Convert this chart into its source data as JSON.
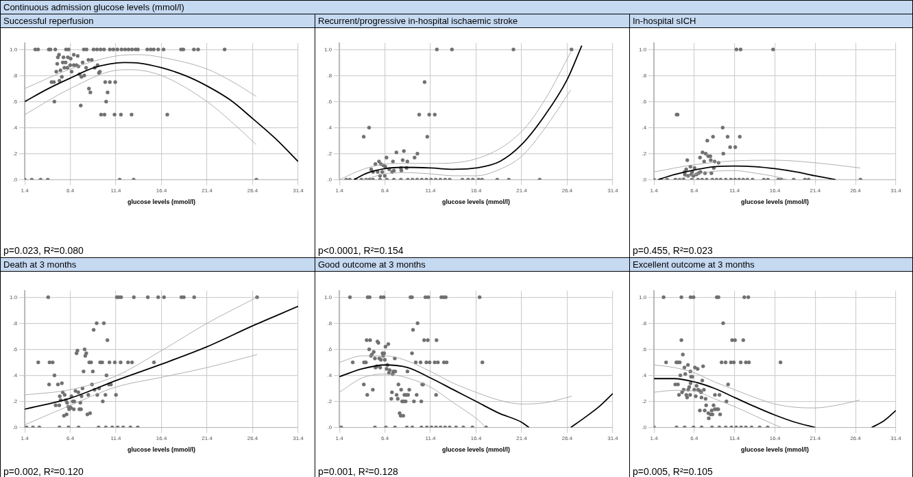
{
  "chart_data": [
    {
      "type": "other",
      "title": "Continuous admission glucose levels (mmol/l)"
    },
    {
      "type": "scatter",
      "title": "Successful reperfusion",
      "xlabel": "glucose levels (mmol/l)",
      "annotations": [
        "p=0.023, R²=0.080"
      ],
      "xlim": [
        1.4,
        31.4
      ],
      "ylim": [
        0,
        1.05
      ],
      "xticks": [
        1.4,
        6.4,
        11.4,
        16.4,
        21.4,
        26.4,
        31.4
      ],
      "yticks": [
        {
          "value": 0,
          "label": ".0"
        },
        {
          "value": 0.2,
          "label": ".2"
        },
        {
          "value": 0.4,
          "label": ".4"
        },
        {
          "value": 0.6,
          "label": ".6"
        },
        {
          "value": 0.8,
          "label": ".8"
        },
        {
          "value": 1,
          "label": "1.0"
        }
      ],
      "grid": true,
      "series": [
        {
          "type": "scatter",
          "marker": "circle",
          "color": "#707070",
          "x": [
            2.55,
            2.86,
            4.04,
            4.22,
            4.75,
            5.93,
            6.21,
            7.88,
            8.18,
            8.95,
            9.33,
            9.72,
            10.1,
            10.74,
            11.13,
            11.56,
            12.02,
            12.41,
            12.79,
            13.17,
            13.56,
            13.81,
            14.84,
            15.22,
            15.55,
            16.04,
            16.63,
            18.55,
            18.8,
            19.96,
            20.42,
            23.33,
            5.16,
            5.03,
            5.65,
            6.13,
            6.78,
            7.21,
            6.44,
            4.96,
            5.57,
            5.88,
            5.75,
            6.08,
            6.39,
            6.78,
            7.06,
            7.29,
            7.75,
            8.39,
            8.75,
            8.13,
            9.08,
            9.39,
            4.86,
            5.32,
            6.54,
            5.47,
            4.34,
            4.6,
            5.21,
            7.41,
            7.62,
            7.93,
            9.54,
            9.64,
            10.23,
            10.74,
            11.33,
            8.44,
            8.6,
            10.49,
            4.65,
            10.33,
            7.54,
            9.77,
            10.15,
            11.25,
            11.95,
            13.12,
            17.04,
            1.4,
            2.17,
            3.14,
            3.93,
            11.82,
            13.35,
            26.82
          ],
          "values": [
            1,
            1,
            1,
            1,
            1,
            1,
            1,
            1,
            1,
            1,
            1,
            1,
            1,
            1,
            1,
            1,
            1,
            1,
            1,
            1,
            1,
            1,
            1,
            1,
            1,
            1,
            1,
            1,
            1,
            1,
            1,
            1,
            0.96,
            0.94,
            0.94,
            0.94,
            0.96,
            0.95,
            0.93,
            0.89,
            0.9,
            0.9,
            0.86,
            0.86,
            0.88,
            0.88,
            0.88,
            0.87,
            0.9,
            0.92,
            0.92,
            0.86,
            0.86,
            0.88,
            0.83,
            0.84,
            0.83,
            0.79,
            0.75,
            0.75,
            0.76,
            0.81,
            0.79,
            0.8,
            0.82,
            0.83,
            0.75,
            0.75,
            0.75,
            0.7,
            0.67,
            0.67,
            0.6,
            0.6,
            0.57,
            0.5,
            0.5,
            0.5,
            0.5,
            0.5,
            0.5,
            0,
            0,
            0,
            0,
            0,
            0,
            0
          ]
        },
        {
          "type": "line",
          "marker": "none",
          "color": "#000000",
          "x": [
            1.4,
            4,
            6.4,
            9,
            12.3,
            14,
            16.4,
            19,
            21.4,
            24,
            26.4,
            29,
            31.4
          ],
          "values": [
            0.6,
            0.7,
            0.78,
            0.86,
            0.9,
            0.895,
            0.86,
            0.8,
            0.72,
            0.61,
            0.47,
            0.31,
            0.14
          ]
        },
        {
          "type": "line",
          "marker": "none",
          "color": "#a6a6a6",
          "x": [
            1.4,
            6.4,
            11.4,
            14,
            16.4,
            21.4,
            24,
            26.8
          ],
          "values": [
            0.7,
            0.85,
            0.95,
            0.96,
            0.94,
            0.85,
            0.76,
            0.64
          ]
        },
        {
          "type": "line",
          "marker": "none",
          "color": "#a6a6a6",
          "x": [
            1.4,
            6.4,
            11.4,
            13,
            16.4,
            21.4,
            24,
            26.8
          ],
          "values": [
            0.5,
            0.7,
            0.84,
            0.845,
            0.8,
            0.6,
            0.45,
            0.27
          ]
        }
      ]
    },
    {
      "type": "scatter",
      "title": "Recurrent/progressive in-hospital ischaemic stroke",
      "xlabel": "glucose levels (mmol/l)",
      "annotations": [
        "p<0.0001, R²=0.154"
      ],
      "xlim": [
        1.4,
        31.4
      ],
      "ylim": [
        0,
        1.05
      ],
      "xticks": [
        1.4,
        6.4,
        11.4,
        16.4,
        21.4,
        26.4,
        31.4
      ],
      "yticks": [
        {
          "value": 0,
          "label": ".0"
        },
        {
          "value": 0.2,
          "label": ".2"
        },
        {
          "value": 0.4,
          "label": ".4"
        },
        {
          "value": 0.6,
          "label": ".6"
        },
        {
          "value": 0.8,
          "label": ".8"
        },
        {
          "value": 1,
          "label": "1.0"
        }
      ],
      "grid": true,
      "series": [
        {
          "type": "scatter",
          "marker": "circle",
          "color": "#707070",
          "x": [
            12.1,
            13.75,
            20.5,
            26.87,
            10.75,
            10.16,
            11.26,
            11.87,
            11.05,
            4.07,
            4.66,
            7.66,
            8.48,
            9.96,
            9.65,
            6.57,
            8.35,
            8.86,
            7.28,
            5.75,
            5.35,
            5.96,
            6.24,
            6.44,
            4.89,
            6.87,
            8.15,
            8.78,
            5.09,
            5.6,
            6.11,
            7.2,
            7.38,
            8.2,
            5.86,
            6.39,
            2.16,
            2.55,
            3.18,
            3.82,
            4.33,
            4.71,
            5.09,
            5.86,
            6.62,
            7.38,
            8.15,
            8.91,
            9.42,
            9.93,
            10.44,
            10.95,
            11.46,
            11.97,
            12.48,
            13,
            13.5,
            14.9,
            15.53,
            16.04,
            16.68,
            17.06,
            18.72,
            19.99,
            23.38
          ],
          "values": [
            1,
            1,
            1,
            1,
            0.75,
            0.5,
            0.5,
            0.5,
            0.33,
            0.33,
            0.4,
            0.21,
            0.22,
            0.2,
            0.17,
            0.17,
            0.15,
            0.14,
            0.14,
            0.14,
            0.12,
            0.12,
            0.11,
            0.1,
            0.08,
            0.08,
            0.09,
            0.09,
            0.06,
            0.06,
            0.06,
            0.06,
            0.07,
            0.07,
            0.03,
            0.03,
            0,
            0,
            0,
            0,
            0,
            0,
            0,
            0,
            0,
            0,
            0,
            0,
            0,
            0,
            0,
            0,
            0,
            0,
            0,
            0,
            0,
            0,
            0,
            0,
            0,
            0,
            0,
            0,
            0
          ]
        },
        {
          "type": "line",
          "marker": "none",
          "color": "#000000",
          "x": [
            3,
            4.4,
            6.4,
            8.4,
            11.4,
            13.9,
            16.4,
            19,
            21.4,
            24,
            26.4,
            28
          ],
          "values": [
            0,
            0.05,
            0.085,
            0.095,
            0.09,
            0.08,
            0.09,
            0.14,
            0.27,
            0.5,
            0.77,
            1.03
          ]
        },
        {
          "type": "line",
          "marker": "none",
          "color": "#a6a6a6",
          "x": [
            1.4,
            4,
            6.4,
            8.4,
            11.4,
            16.4,
            21.4,
            24,
            26.8
          ],
          "values": [
            0,
            0.08,
            0.12,
            0.125,
            0.125,
            0.16,
            0.37,
            0.62,
            0.98
          ]
        },
        {
          "type": "line",
          "marker": "none",
          "color": "#a6a6a6",
          "x": [
            4.07,
            6.4,
            8.4,
            11.4,
            14,
            16.4,
            19,
            21.4,
            24,
            26.8
          ],
          "values": [
            0,
            0.045,
            0.055,
            0.045,
            0.03,
            0.03,
            0.08,
            0.18,
            0.4,
            0.69
          ]
        }
      ]
    },
    {
      "type": "scatter",
      "title": "In-hospital sICH",
      "xlabel": "glucose levels (mmol/l)",
      "annotations": [
        "p=0.455, R²=0.023"
      ],
      "xlim": [
        1.4,
        31.4
      ],
      "ylim": [
        0,
        1.05
      ],
      "xticks": [
        1.4,
        6.4,
        11.4,
        16.4,
        21.4,
        26.4,
        31.4
      ],
      "yticks": [
        {
          "value": 0,
          "label": ".0"
        },
        {
          "value": 0.2,
          "label": ".2"
        },
        {
          "value": 0.4,
          "label": ".4"
        },
        {
          "value": 0.6,
          "label": ".6"
        },
        {
          "value": 0.8,
          "label": ".8"
        },
        {
          "value": 1,
          "label": "1.0"
        }
      ],
      "grid": true,
      "series": [
        {
          "type": "scatter",
          "marker": "circle",
          "color": "#707070",
          "x": [
            11.63,
            12.14,
            16.17,
            4.21,
            4.33,
            9.92,
            8.72,
            10.53,
            12.04,
            8.01,
            10.84,
            11.48,
            10,
            7.42,
            7.82,
            8.13,
            8.39,
            8.44,
            7.62,
            8.92,
            9.41,
            5.53,
            5.92,
            7.11,
            8.82,
            8.52,
            7.73,
            6.43,
            5.4,
            6.12,
            5.2,
            7.17,
            6.94,
            6.66,
            6.02,
            5.63,
            6.3,
            5.23,
            1.4,
            2.27,
            3.03,
            4.05,
            4.56,
            5.07,
            6.09,
            6.86,
            7.37,
            7.93,
            8.64,
            9.16,
            9.67,
            10.3,
            10.94,
            11.45,
            11.96,
            12.47,
            12.98,
            13.62,
            15.02,
            15.53,
            16.81,
            17.19,
            18.72,
            20.12,
            20.58,
            27.01
          ],
          "values": [
            1,
            1,
            1,
            0.5,
            0.5,
            0.4,
            0.33,
            0.33,
            0.33,
            0.3,
            0.25,
            0.25,
            0.2,
            0.21,
            0.2,
            0.18,
            0.18,
            0.15,
            0.14,
            0.14,
            0.13,
            0.15,
            0.1,
            0.17,
            0.09,
            0.05,
            0.05,
            0.09,
            0.08,
            0.06,
            0.06,
            0.06,
            0.05,
            0.04,
            0.04,
            0.03,
            0.03,
            0.04,
            0,
            0,
            0,
            0,
            0,
            0,
            0,
            0,
            0,
            0,
            0,
            0,
            0,
            0,
            0,
            0,
            0,
            0,
            0,
            0,
            0,
            0,
            0,
            0,
            0,
            0,
            0,
            0
          ]
        },
        {
          "type": "line",
          "marker": "none",
          "color": "#000000",
          "x": [
            1.88,
            4,
            6.4,
            8.9,
            11.4,
            14,
            16.4,
            19,
            21.4,
            23.95
          ],
          "values": [
            0,
            0.04,
            0.075,
            0.1,
            0.105,
            0.1,
            0.085,
            0.06,
            0.03,
            0
          ]
        },
        {
          "type": "line",
          "marker": "none",
          "color": "#a6a6a6",
          "x": [
            1.4,
            6.4,
            11.4,
            16.4,
            21.4,
            27
          ],
          "values": [
            0.06,
            0.115,
            0.145,
            0.15,
            0.13,
            0.09
          ]
        },
        {
          "type": "line",
          "marker": "none",
          "color": "#a6a6a6",
          "x": [
            4.2,
            6.4,
            9,
            11.4,
            14,
            16.4,
            18
          ],
          "values": [
            0,
            0.04,
            0.065,
            0.07,
            0.05,
            0.025,
            0
          ]
        }
      ]
    },
    {
      "type": "scatter",
      "title": "Death at 3 months",
      "xlabel": "glucose levels (mmol/l)",
      "annotations": [
        "p=0.002, R²=0.120"
      ],
      "xlim": [
        1.4,
        31.4
      ],
      "ylim": [
        0,
        1.05
      ],
      "xticks": [
        1.4,
        6.4,
        11.4,
        16.4,
        21.4,
        26.4,
        31.4
      ],
      "yticks": [
        {
          "value": 0,
          "label": ".0"
        },
        {
          "value": 0.2,
          "label": ".2"
        },
        {
          "value": 0.4,
          "label": ".4"
        },
        {
          "value": 0.6,
          "label": ".6"
        },
        {
          "value": 0.8,
          "label": ".8"
        },
        {
          "value": 1,
          "label": "1.0"
        }
      ],
      "grid": true,
      "series": [
        {
          "type": "scatter",
          "marker": "circle",
          "color": "#707070",
          "x": [
            3.97,
            11.51,
            11.71,
            11.97,
            13.37,
            14.9,
            16.04,
            16.68,
            18.59,
            18.85,
            19.99,
            26.89,
            9.29,
            10.08,
            8.96,
            10.47,
            7.97,
            7.18,
            7.08,
            8.15,
            8.04,
            2.88,
            4.12,
            4.46,
            8.48,
            8.68,
            9.67,
            9.9,
            10.69,
            11.28,
            11.92,
            12.73,
            13.17,
            15.58,
            7.85,
            8.87,
            4.66,
            10.37,
            4.07,
            5.04,
            8.78,
            10.64,
            10.85,
            5.47,
            6.97,
            7.28,
            7.74,
            9.55,
            9.06,
            5.57,
            5.78,
            5.24,
            6.52,
            7.63,
            8.37,
            9.36,
            10.25,
            11.41,
            5.9,
            5.34,
            6.67,
            6.83,
            9.96,
            7.5,
            6.04,
            4.79,
            5.19,
            6.17,
            6.37,
            6.47,
            6.27,
            6.78,
            7.39,
            7.57,
            5.99,
            5.7,
            8.27,
            8.57,
            1.6,
            2.3,
            3,
            5.2,
            6.2,
            7.3,
            9.5,
            10.3,
            11,
            11.6,
            12.2,
            13,
            13.8
          ],
          "values": [
            1,
            1,
            1,
            1,
            1,
            1,
            1,
            1,
            1,
            1,
            1,
            1,
            0.8,
            0.8,
            0.75,
            0.67,
            0.6,
            0.59,
            0.57,
            0.57,
            0.55,
            0.5,
            0.5,
            0.5,
            0.5,
            0.5,
            0.5,
            0.5,
            0.5,
            0.5,
            0.5,
            0.5,
            0.5,
            0.5,
            0.43,
            0.43,
            0.4,
            0.4,
            0.33,
            0.33,
            0.33,
            0.33,
            0.33,
            0.34,
            0.28,
            0.27,
            0.3,
            0.3,
            0.29,
            0.27,
            0.25,
            0.24,
            0.24,
            0.24,
            0.25,
            0.25,
            0.25,
            0.25,
            0.21,
            0.21,
            0.2,
            0.2,
            0.2,
            0.19,
            0.19,
            0.17,
            0.17,
            0.16,
            0.155,
            0.15,
            0.14,
            0.14,
            0.14,
            0.14,
            0.1,
            0.09,
            0.1,
            0.11,
            0,
            0,
            0,
            0,
            0,
            0,
            0,
            0,
            0,
            0,
            0,
            0,
            0
          ]
        },
        {
          "type": "line",
          "marker": "none",
          "color": "#000000",
          "x": [
            1.4,
            6.4,
            11.4,
            16.4,
            21.4,
            26.4,
            31.4
          ],
          "values": [
            0.14,
            0.225,
            0.36,
            0.486,
            0.62,
            0.78,
            0.93
          ]
        },
        {
          "type": "line",
          "marker": "none",
          "color": "#a6a6a6",
          "x": [
            1.4,
            6.4,
            11.4,
            16.4,
            21.4,
            26.9
          ],
          "values": [
            0.25,
            0.29,
            0.395,
            0.59,
            0.8,
            1
          ]
        },
        {
          "type": "line",
          "marker": "none",
          "color": "#a6a6a6",
          "x": [
            1.4,
            6.4,
            11.4,
            16.4,
            21.4,
            26.9
          ],
          "values": [
            0.02,
            0.17,
            0.31,
            0.385,
            0.46,
            0.56
          ]
        }
      ]
    },
    {
      "type": "scatter",
      "title": "Good outcome at 3 months",
      "xlabel": "glucose levels (mmol/l)",
      "annotations": [
        "p=0.001, R²=0.128"
      ],
      "xlim": [
        1.4,
        31.4
      ],
      "ylim": [
        0,
        1.05
      ],
      "xticks": [
        1.4,
        6.4,
        11.4,
        16.4,
        21.4,
        26.4,
        31.4
      ],
      "yticks": [
        {
          "value": 0,
          "label": ".0"
        },
        {
          "value": 0.2,
          "label": ".2"
        },
        {
          "value": 0.4,
          "label": ".4"
        },
        {
          "value": 0.6,
          "label": ".6"
        },
        {
          "value": 0.8,
          "label": ".8"
        },
        {
          "value": 1,
          "label": "1.0"
        }
      ],
      "grid": true,
      "series": [
        {
          "type": "scatter",
          "marker": "circle",
          "color": "#707070",
          "x": [
            2.56,
            4.51,
            4.72,
            5.96,
            6.26,
            9.2,
            9.37,
            10.84,
            11.15,
            12.59,
            12.84,
            13.07,
            16.79,
            9.98,
            9.48,
            4.39,
            4.77,
            10.7,
            11.1,
            12.06,
            5.58,
            5.68,
            6.77,
            6.46,
            4.67,
            5.17,
            6.14,
            6.31,
            9.37,
            4.97,
            4.87,
            6.19,
            2.87,
            4.11,
            4.31,
            9.78,
            10.31,
            10.94,
            11.3,
            11.86,
            12.21,
            12.87,
            13.17,
            17.09,
            5.3,
            5.78,
            5.96,
            6.39,
            7.48,
            5.5,
            5.37,
            5.88,
            6.67,
            6.59,
            6.92,
            7.32,
            7.53,
            6.84,
            7.25,
            8.87,
            4.08,
            10.49,
            10.59,
            5.07,
            4.46,
            8.18,
            9.07,
            7.88,
            7.17,
            7.68,
            8.54,
            8.74,
            8.94,
            9.88,
            12.01,
            7.1,
            7.81,
            8.29,
            8.44,
            8.67,
            9.58,
            10.39,
            8.01,
            8.13,
            8.41,
            1.6,
            5.3,
            6.5,
            7.5,
            8.8,
            9.4,
            10.4,
            11,
            11.5,
            12,
            12.5,
            13,
            13.5,
            14.2,
            15,
            16,
            17.5
          ],
          "values": [
            1,
            1,
            1,
            1,
            1,
            1,
            1,
            1,
            1,
            1,
            1,
            1,
            1,
            0.8,
            0.75,
            0.67,
            0.67,
            0.67,
            0.67,
            0.67,
            0.66,
            0.65,
            0.64,
            0.62,
            0.6,
            0.58,
            0.57,
            0.57,
            0.57,
            0.56,
            0.55,
            0.55,
            0.5,
            0.5,
            0.5,
            0.5,
            0.5,
            0.5,
            0.5,
            0.5,
            0.5,
            0.5,
            0.5,
            0.5,
            0.53,
            0.53,
            0.52,
            0.52,
            0.53,
            0.47,
            0.46,
            0.46,
            0.48,
            0.45,
            0.44,
            0.43,
            0.43,
            0.42,
            0.41,
            0.43,
            0.33,
            0.33,
            0.33,
            0.29,
            0.25,
            0.29,
            0.29,
            0.33,
            0.27,
            0.25,
            0.25,
            0.25,
            0.25,
            0.25,
            0.25,
            0.22,
            0.22,
            0.2,
            0.2,
            0.2,
            0.2,
            0.2,
            0.11,
            0.09,
            0.09,
            0,
            0,
            0,
            0,
            0,
            0,
            0,
            0,
            0,
            0,
            0,
            0,
            0,
            0,
            0,
            0,
            0
          ]
        },
        {
          "type": "line",
          "marker": "none",
          "color": "#000000",
          "x": [
            1.4,
            3.9,
            6.4,
            8.9,
            11.4,
            13.9,
            16.4,
            18.9,
            21.4,
            22.2,
            24.5,
            26.8,
            28.4,
            29.9,
            31.4
          ],
          "values": [
            0.39,
            0.45,
            0.48,
            0.46,
            0.38,
            0.29,
            0.2,
            0.11,
            0.04,
            0,
            null,
            0,
            0.08,
            0.16,
            0.26
          ]
        },
        {
          "type": "line",
          "marker": "none",
          "color": "#a6a6a6",
          "x": [
            1.4,
            3.9,
            6.4,
            8.9,
            11.4,
            13.9,
            16.4,
            18.9,
            21.4,
            24,
            26.9
          ],
          "values": [
            0.5,
            0.55,
            0.55,
            0.51,
            0.43,
            0.34,
            0.27,
            0.21,
            0.18,
            0.19,
            0.24
          ]
        },
        {
          "type": "line",
          "marker": "none",
          "color": "#a6a6a6",
          "x": [
            1.4,
            3.9,
            6.4,
            8.9,
            11.4,
            13.9,
            16.4,
            17.5
          ],
          "values": [
            0.27,
            0.38,
            0.41,
            0.38,
            0.31,
            0.19,
            0.07,
            0
          ]
        }
      ]
    },
    {
      "type": "scatter",
      "title": "Excellent outcome at 3 months",
      "xlabel": "glucose levels (mmol/l)",
      "annotations": [
        "p=0.005, R²=0.105"
      ],
      "xlim": [
        1.4,
        31.4
      ],
      "ylim": [
        0,
        1.05
      ],
      "xticks": [
        1.4,
        6.4,
        11.4,
        16.4,
        21.4,
        26.4,
        31.4
      ],
      "yticks": [
        {
          "value": 0,
          "label": ".0"
        },
        {
          "value": 0.2,
          "label": ".2"
        },
        {
          "value": 0.4,
          "label": ".4"
        },
        {
          "value": 0.6,
          "label": ".6"
        },
        {
          "value": 0.8,
          "label": ".8"
        },
        {
          "value": 1,
          "label": "1.0"
        }
      ],
      "grid": true,
      "series": [
        {
          "type": "scatter",
          "marker": "circle",
          "color": "#707070",
          "x": [
            2.59,
            4.8,
            5.94,
            6.3,
            9.19,
            9.4,
            12.6,
            13.1,
            9.98,
            4.8,
            11.09,
            11.45,
            12.47,
            4.98,
            2.9,
            4.17,
            4.37,
            4.6,
            9.78,
            10.28,
            10.94,
            11.3,
            12.16,
            12.8,
            13.18,
            17.09,
            5.61,
            5.18,
            6.48,
            6.81,
            7.49,
            5.92,
            5.28,
            4.67,
            6,
            6.15,
            7.39,
            10.59,
            4.04,
            4.37,
            5.94,
            6.68,
            6.88,
            6.4,
            5.77,
            5.64,
            5.08,
            7.11,
            7.24,
            7.59,
            4.88,
            4.5,
            5.41,
            5.89,
            8.96,
            9.52,
            5.51,
            6.58,
            7.29,
            7.8,
            10.39,
            7.87,
            8.79,
            7.09,
            7.69,
            8.56,
            8.94,
            9.14,
            9.37,
            8.14,
            8.42,
            8.65,
            9.6,
            8.19,
            1.4,
            4.2,
            5.2,
            6.3,
            7.3,
            8.6,
            9.5,
            10.3,
            11,
            11.6,
            12.2,
            12.8,
            13.5,
            14.5,
            15.5
          ],
          "values": [
            1,
            1,
            1,
            1,
            1,
            1,
            1,
            1,
            0.8,
            0.67,
            0.67,
            0.67,
            0.67,
            0.56,
            0.5,
            0.5,
            0.5,
            0.5,
            0.5,
            0.5,
            0.5,
            0.5,
            0.5,
            0.5,
            0.5,
            0.5,
            0.48,
            0.46,
            0.46,
            0.45,
            0.47,
            0.43,
            0.41,
            0.4,
            0.39,
            0.39,
            0.36,
            0.33,
            0.33,
            0.33,
            0.34,
            0.32,
            0.29,
            0.29,
            0.31,
            0.29,
            0.29,
            0.28,
            0.27,
            0.29,
            0.27,
            0.25,
            0.25,
            0.25,
            0.25,
            0.25,
            0.23,
            0.24,
            0.23,
            0.22,
            0.2,
            0.17,
            0.17,
            0.13,
            0.13,
            0.13,
            0.14,
            0.14,
            0.14,
            0.11,
            0.1,
            0.1,
            0.1,
            0.07,
            0,
            0,
            0,
            0,
            0,
            0,
            0,
            0,
            0,
            0,
            0,
            0,
            0,
            0,
            0
          ]
        },
        {
          "type": "line",
          "marker": "none",
          "color": "#000000",
          "x": [
            1.4,
            3.9,
            6.4,
            8.9,
            11.4,
            13.9,
            16.4,
            18.9,
            21.4,
            25,
            28.4,
            29.9,
            31.4
          ],
          "values": [
            0.375,
            0.375,
            0.35,
            0.3,
            0.23,
            0.16,
            0.095,
            0.04,
            0,
            null,
            0,
            0.05,
            0.13
          ]
        },
        {
          "type": "line",
          "marker": "none",
          "color": "#a6a6a6",
          "x": [
            1.4,
            3.9,
            6.4,
            8.9,
            11.4,
            13.9,
            16.4,
            18.9,
            21.4,
            24,
            26.9
          ],
          "values": [
            0.48,
            0.46,
            0.42,
            0.35,
            0.29,
            0.23,
            0.18,
            0.155,
            0.15,
            0.17,
            0.21
          ]
        },
        {
          "type": "line",
          "marker": "none",
          "color": "#a6a6a6",
          "x": [
            1.4,
            3.9,
            6.4,
            8.9,
            11.4,
            13.9,
            16.4,
            17.2
          ],
          "values": [
            0.27,
            0.285,
            0.28,
            0.22,
            0.16,
            0.09,
            0.02,
            0
          ]
        }
      ]
    }
  ]
}
